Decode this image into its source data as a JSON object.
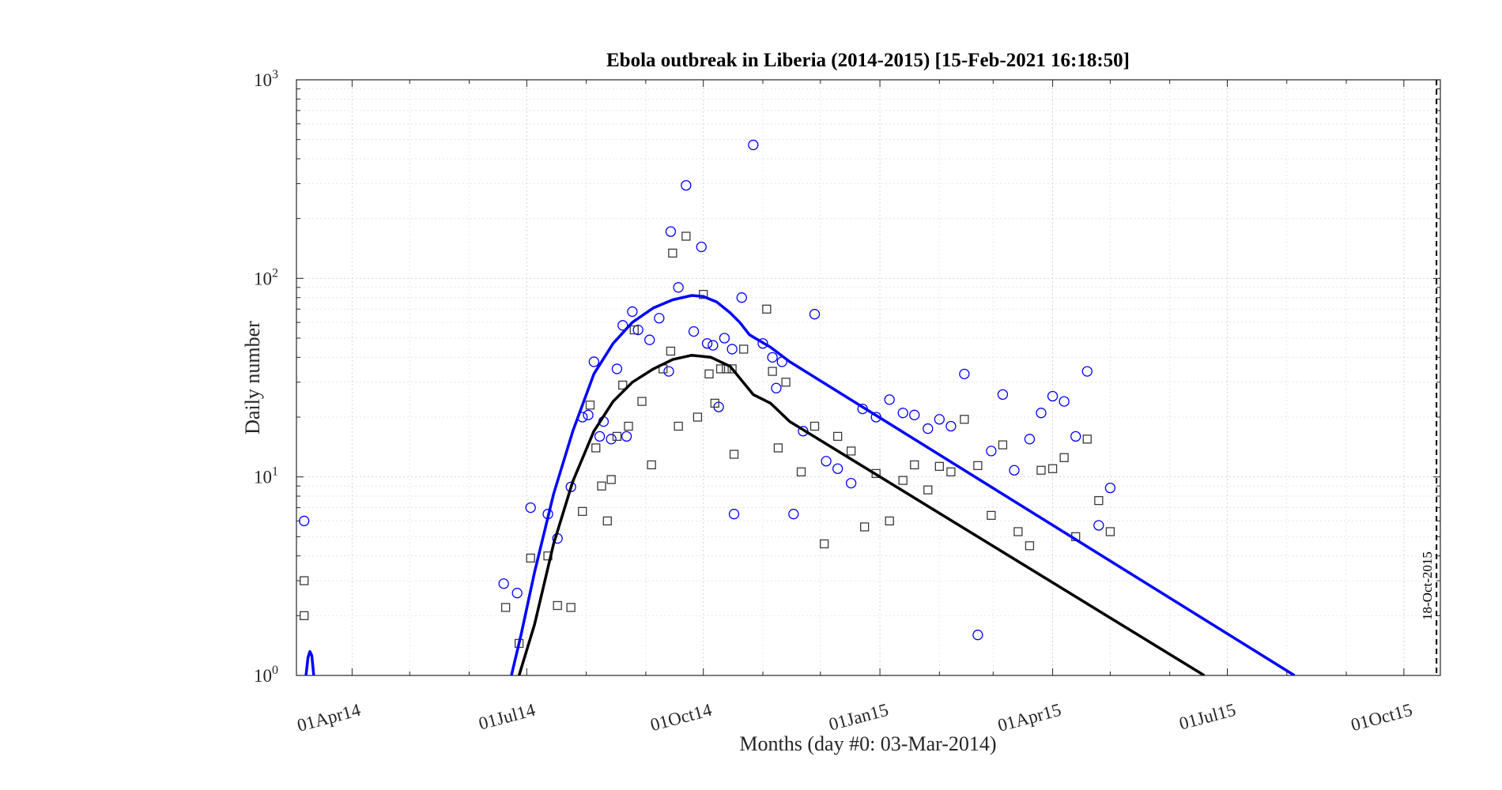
{
  "chart_data": {
    "type": "scatter",
    "title": "Ebola outbreak in Liberia (2014-2015) [15-Feb-2021 16:18:50]",
    "xlabel": "Months (day #0: 03-Mar-2014)",
    "ylabel": "Daily number",
    "yscale": "log",
    "ylim": [
      1,
      1000
    ],
    "xlim": [
      "2014-03-03",
      "2015-10-20"
    ],
    "grid": true,
    "y_ticks": [
      {
        "base": "10",
        "exp": "0",
        "value": 1
      },
      {
        "base": "10",
        "exp": "1",
        "value": 10
      },
      {
        "base": "10",
        "exp": "2",
        "value": 100
      },
      {
        "base": "10",
        "exp": "3",
        "value": 1000
      }
    ],
    "x_ticks": [
      {
        "label": "01Apr14",
        "date": "2014-04-01"
      },
      {
        "label": "01Jul14",
        "date": "2014-07-01"
      },
      {
        "label": "01Oct14",
        "date": "2014-10-01"
      },
      {
        "label": "01Jan15",
        "date": "2015-01-01"
      },
      {
        "label": "01Apr15",
        "date": "2015-04-01"
      },
      {
        "label": "01Jul15",
        "date": "2015-07-01"
      },
      {
        "label": "01Oct15",
        "date": "2015-10-01"
      }
    ],
    "vline": {
      "date": "2015-10-18",
      "label": "18-Oct-2015"
    },
    "series": [
      {
        "marker": "circle",
        "color": "#0000ff",
        "points": [
          [
            "2014-03-07",
            6.0
          ],
          [
            "2014-06-19",
            2.9
          ],
          [
            "2014-06-26",
            2.6
          ],
          [
            "2014-07-03",
            7.0
          ],
          [
            "2014-07-12",
            6.5
          ],
          [
            "2014-07-17",
            4.9
          ],
          [
            "2014-07-24",
            8.9
          ],
          [
            "2014-07-30",
            20
          ],
          [
            "2014-08-02",
            20.5
          ],
          [
            "2014-08-05",
            38
          ],
          [
            "2014-08-08",
            16
          ],
          [
            "2014-08-10",
            19
          ],
          [
            "2014-08-14",
            15.5
          ],
          [
            "2014-08-17",
            35
          ],
          [
            "2014-08-20",
            58
          ],
          [
            "2014-08-22",
            16
          ],
          [
            "2014-08-25",
            68
          ],
          [
            "2014-08-28",
            55
          ],
          [
            "2014-09-03",
            49
          ],
          [
            "2014-09-08",
            63
          ],
          [
            "2014-09-13",
            34
          ],
          [
            "2014-09-14",
            172
          ],
          [
            "2014-09-18",
            90
          ],
          [
            "2014-09-22",
            294
          ],
          [
            "2014-09-26",
            54
          ],
          [
            "2014-09-30",
            144
          ],
          [
            "2014-10-03",
            47
          ],
          [
            "2014-10-06",
            46
          ],
          [
            "2014-10-09",
            22.5
          ],
          [
            "2014-10-12",
            50
          ],
          [
            "2014-10-16",
            44
          ],
          [
            "2014-10-17",
            6.5
          ],
          [
            "2014-10-21",
            80
          ],
          [
            "2014-10-27",
            470
          ],
          [
            "2014-11-01",
            47
          ],
          [
            "2014-11-06",
            40
          ],
          [
            "2014-11-08",
            28
          ],
          [
            "2014-11-11",
            38
          ],
          [
            "2014-11-17",
            6.5
          ],
          [
            "2014-11-22",
            17
          ],
          [
            "2014-11-28",
            66
          ],
          [
            "2014-12-04",
            12
          ],
          [
            "2014-12-10",
            11
          ],
          [
            "2014-12-17",
            9.3
          ],
          [
            "2014-12-23",
            22
          ],
          [
            "2014-12-30",
            20
          ],
          [
            "2015-01-06",
            24.5
          ],
          [
            "2015-01-13",
            21
          ],
          [
            "2015-01-19",
            20.5
          ],
          [
            "2015-01-26",
            17.5
          ],
          [
            "2015-02-01",
            19.5
          ],
          [
            "2015-02-07",
            18
          ],
          [
            "2015-02-14",
            33
          ],
          [
            "2015-02-21",
            1.6
          ],
          [
            "2015-02-28",
            13.5
          ],
          [
            "2015-03-06",
            26
          ],
          [
            "2015-03-12",
            10.8
          ],
          [
            "2015-03-20",
            15.5
          ],
          [
            "2015-03-26",
            21
          ],
          [
            "2015-04-01",
            25.5
          ],
          [
            "2015-04-07",
            24
          ],
          [
            "2015-04-13",
            16
          ],
          [
            "2015-04-19",
            34
          ],
          [
            "2015-04-25",
            5.7
          ],
          [
            "2015-05-01",
            8.8
          ]
        ]
      },
      {
        "marker": "square",
        "color": "#3a3a3a",
        "points": [
          [
            "2014-03-07",
            3.0
          ],
          [
            "2014-03-07",
            2.0
          ],
          [
            "2014-06-20",
            2.2
          ],
          [
            "2014-06-27",
            1.45
          ],
          [
            "2014-07-03",
            3.9
          ],
          [
            "2014-07-12",
            4.0
          ],
          [
            "2014-07-17",
            2.25
          ],
          [
            "2014-07-24",
            2.2
          ],
          [
            "2014-07-30",
            6.7
          ],
          [
            "2014-08-03",
            23
          ],
          [
            "2014-08-06",
            14
          ],
          [
            "2014-08-09",
            9.0
          ],
          [
            "2014-08-12",
            6.0
          ],
          [
            "2014-08-14",
            9.7
          ],
          [
            "2014-08-17",
            16
          ],
          [
            "2014-08-20",
            29
          ],
          [
            "2014-08-23",
            18
          ],
          [
            "2014-08-26",
            55
          ],
          [
            "2014-08-30",
            24
          ],
          [
            "2014-09-04",
            11.5
          ],
          [
            "2014-09-10",
            35
          ],
          [
            "2014-09-14",
            43
          ],
          [
            "2014-09-15",
            134
          ],
          [
            "2014-09-18",
            18
          ],
          [
            "2014-09-22",
            163
          ],
          [
            "2014-09-28",
            20
          ],
          [
            "2014-10-01",
            83
          ],
          [
            "2014-10-04",
            33
          ],
          [
            "2014-10-07",
            23.5
          ],
          [
            "2014-10-10",
            35
          ],
          [
            "2014-10-13",
            35
          ],
          [
            "2014-10-16",
            35
          ],
          [
            "2014-10-17",
            13
          ],
          [
            "2014-10-22",
            44
          ],
          [
            "2014-11-03",
            70
          ],
          [
            "2014-11-06",
            34
          ],
          [
            "2014-11-09",
            14
          ],
          [
            "2014-11-13",
            30
          ],
          [
            "2014-11-21",
            10.6
          ],
          [
            "2014-11-28",
            18
          ],
          [
            "2014-12-03",
            4.6
          ],
          [
            "2014-12-10",
            16
          ],
          [
            "2014-12-17",
            13.5
          ],
          [
            "2014-12-24",
            5.6
          ],
          [
            "2014-12-30",
            10.4
          ],
          [
            "2015-01-06",
            6.0
          ],
          [
            "2015-01-13",
            9.6
          ],
          [
            "2015-01-19",
            11.5
          ],
          [
            "2015-01-26",
            8.6
          ],
          [
            "2015-02-01",
            11.3
          ],
          [
            "2015-02-07",
            10.6
          ],
          [
            "2015-02-14",
            19.5
          ],
          [
            "2015-02-21",
            11.4
          ],
          [
            "2015-02-28",
            6.4
          ],
          [
            "2015-03-06",
            14.5
          ],
          [
            "2015-03-14",
            5.3
          ],
          [
            "2015-03-20",
            4.5
          ],
          [
            "2015-03-26",
            10.8
          ],
          [
            "2015-04-01",
            11
          ],
          [
            "2015-04-07",
            12.5
          ],
          [
            "2015-04-13",
            5.0
          ],
          [
            "2015-04-19",
            15.5
          ],
          [
            "2015-04-25",
            7.6
          ],
          [
            "2015-05-01",
            5.3
          ]
        ]
      },
      {
        "marker": "line",
        "color": "#0000ff",
        "points": [
          [
            "2014-03-08",
            1.0
          ],
          [
            "2014-03-09",
            1.23
          ],
          [
            "2014-03-10",
            1.32
          ],
          [
            "2014-03-11",
            1.26
          ],
          [
            "2014-03-12",
            1.0
          ],
          [
            "2014-06-23",
            1.0
          ],
          [
            "2014-06-28",
            1.6
          ],
          [
            "2014-07-05",
            3.3
          ],
          [
            "2014-07-15",
            8.2
          ],
          [
            "2014-07-25",
            17
          ],
          [
            "2014-08-05",
            33
          ],
          [
            "2014-08-15",
            47
          ],
          [
            "2014-08-25",
            60
          ],
          [
            "2014-09-05",
            71
          ],
          [
            "2014-09-15",
            78
          ],
          [
            "2014-09-25",
            82
          ],
          [
            "2014-10-01",
            81
          ],
          [
            "2014-10-08",
            76
          ],
          [
            "2014-10-15",
            67
          ],
          [
            "2014-10-20",
            60
          ],
          [
            "2014-10-25",
            52
          ],
          [
            "2014-11-05",
            45
          ],
          [
            "2014-11-15",
            38
          ],
          [
            "2015-08-05",
            1.0
          ]
        ]
      },
      {
        "marker": "line",
        "color": "#000000",
        "points": [
          [
            "2014-06-27",
            1.0
          ],
          [
            "2014-07-05",
            1.8
          ],
          [
            "2014-07-15",
            4.6
          ],
          [
            "2014-07-25",
            9.5
          ],
          [
            "2014-08-05",
            17
          ],
          [
            "2014-08-15",
            24
          ],
          [
            "2014-08-25",
            30
          ],
          [
            "2014-09-05",
            35
          ],
          [
            "2014-09-15",
            39
          ],
          [
            "2014-09-25",
            41
          ],
          [
            "2014-10-05",
            40
          ],
          [
            "2014-10-15",
            36
          ],
          [
            "2014-10-27",
            26
          ],
          [
            "2014-11-05",
            23.5
          ],
          [
            "2014-11-15",
            19
          ],
          [
            "2015-06-19",
            1.0
          ]
        ]
      }
    ]
  }
}
